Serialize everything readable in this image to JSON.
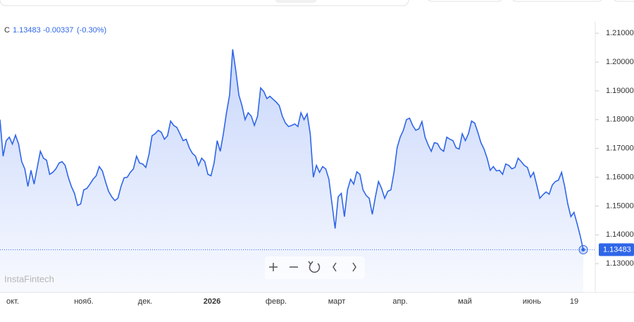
{
  "chart_data": {
    "type": "area",
    "header": {
      "prefix": "C",
      "change": "-0.00337",
      "change_pct": "(-0.30%)"
    },
    "watermark": "InstaFintech",
    "color": "#2f66e8",
    "ylim": [
      1.12,
      1.2142
    ],
    "yticks": [
      {
        "value": 1.21,
        "label": "1.21000"
      },
      {
        "value": 1.2,
        "label": "1.20000"
      },
      {
        "value": 1.19,
        "label": "1.19000"
      },
      {
        "value": 1.18,
        "label": "1.18000"
      },
      {
        "value": 1.17,
        "label": "1.17000"
      },
      {
        "value": 1.16,
        "label": "1.16000"
      },
      {
        "value": 1.15,
        "label": "1.15000"
      },
      {
        "value": 1.14,
        "label": "1.14000"
      },
      {
        "value": 1.13,
        "label": "1.13000"
      }
    ],
    "x_tick_labels": [
      "окт.",
      "нояб.",
      "дек.",
      "2026",
      "февр.",
      "март",
      "апр.",
      "май",
      "июнь",
      "19"
    ],
    "values": [
      1.18,
      1.1673,
      1.1727,
      1.1739,
      1.1715,
      1.1746,
      1.1715,
      1.1654,
      1.1629,
      1.1568,
      1.1624,
      1.1576,
      1.1634,
      1.169,
      1.1666,
      1.1659,
      1.161,
      1.1617,
      1.1629,
      1.1649,
      1.1654,
      1.1641,
      1.16,
      1.1568,
      1.1544,
      1.1502,
      1.1507,
      1.1556,
      1.1561,
      1.1576,
      1.1593,
      1.1605,
      1.1637,
      1.1622,
      1.1585,
      1.1551,
      1.1532,
      1.1519,
      1.1527,
      1.1568,
      1.1598,
      1.16,
      1.1617,
      1.1629,
      1.1673,
      1.1649,
      1.1646,
      1.1634,
      1.1678,
      1.1744,
      1.1751,
      1.1763,
      1.1756,
      1.1732,
      1.1744,
      1.1795,
      1.178,
      1.1773,
      1.1751,
      1.1727,
      1.1732,
      1.1702,
      1.1683,
      1.1673,
      1.1641,
      1.1666,
      1.1654,
      1.161,
      1.1605,
      1.1649,
      1.1727,
      1.169,
      1.1751,
      1.1824,
      1.1885,
      1.2044,
      1.1971,
      1.1885,
      1.1849,
      1.18,
      1.1824,
      1.1812,
      1.178,
      1.1812,
      1.191,
      1.1898,
      1.1873,
      1.1881,
      1.1871,
      1.1861,
      1.1849,
      1.1812,
      1.1788,
      1.1776,
      1.178,
      1.1785,
      1.1776,
      1.1824,
      1.18,
      1.182,
      1.1751,
      1.16,
      1.1641,
      1.1617,
      1.1637,
      1.1629,
      1.1593,
      1.1507,
      1.1422,
      1.1532,
      1.1544,
      1.1463,
      1.1556,
      1.1593,
      1.1576,
      1.1619,
      1.161,
      1.1556,
      1.1537,
      1.1527,
      1.1471,
      1.1532,
      1.1585,
      1.1561,
      1.1527,
      1.1551,
      1.1556,
      1.1617,
      1.1702,
      1.1739,
      1.1763,
      1.18,
      1.1805,
      1.178,
      1.1763,
      1.1768,
      1.1793,
      1.1739,
      1.1712,
      1.169,
      1.172,
      1.1717,
      1.1698,
      1.169,
      1.1739,
      1.1732,
      1.1727,
      1.1702,
      1.1698,
      1.1751,
      1.1727,
      1.1751,
      1.1795,
      1.1788,
      1.1756,
      1.172,
      1.1698,
      1.1666,
      1.1624,
      1.1637,
      1.1622,
      1.1624,
      1.161,
      1.1646,
      1.1641,
      1.1629,
      1.1634,
      1.1666,
      1.1654,
      1.1641,
      1.1634,
      1.16,
      1.1617,
      1.1573,
      1.1527,
      1.1539,
      1.1549,
      1.1541,
      1.1573,
      1.1585,
      1.159,
      1.1617,
      1.1568,
      1.1507,
      1.1463,
      1.1478,
      1.1439,
      1.1397,
      1.13483
    ]
  }
}
